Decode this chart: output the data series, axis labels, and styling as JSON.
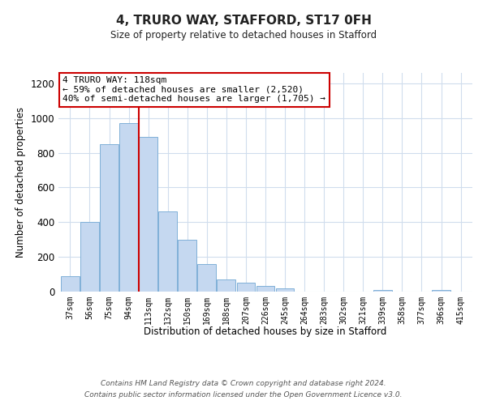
{
  "title": "4, TRURO WAY, STAFFORD, ST17 0FH",
  "subtitle": "Size of property relative to detached houses in Stafford",
  "xlabel": "Distribution of detached houses by size in Stafford",
  "ylabel": "Number of detached properties",
  "categories": [
    "37sqm",
    "56sqm",
    "75sqm",
    "94sqm",
    "113sqm",
    "132sqm",
    "150sqm",
    "169sqm",
    "188sqm",
    "207sqm",
    "226sqm",
    "245sqm",
    "264sqm",
    "283sqm",
    "302sqm",
    "321sqm",
    "339sqm",
    "358sqm",
    "377sqm",
    "396sqm",
    "415sqm"
  ],
  "values": [
    90,
    400,
    850,
    970,
    890,
    460,
    300,
    160,
    70,
    50,
    35,
    20,
    0,
    0,
    0,
    0,
    10,
    0,
    0,
    10,
    0
  ],
  "bar_color": "#c5d8f0",
  "bar_edge_color": "#7fb0d8",
  "highlight_line_color": "#cc0000",
  "annotation_line1": "4 TRURO WAY: 118sqm",
  "annotation_line2": "← 59% of detached houses are smaller (2,520)",
  "annotation_line3": "40% of semi-detached houses are larger (1,705) →",
  "annotation_box_color": "#ffffff",
  "annotation_box_edge_color": "#cc0000",
  "ylim": [
    0,
    1260
  ],
  "yticks": [
    0,
    200,
    400,
    600,
    800,
    1000,
    1200
  ],
  "footer_line1": "Contains HM Land Registry data © Crown copyright and database right 2024.",
  "footer_line2": "Contains public sector information licensed under the Open Government Licence v3.0.",
  "background_color": "#ffffff",
  "grid_color": "#d0dded"
}
